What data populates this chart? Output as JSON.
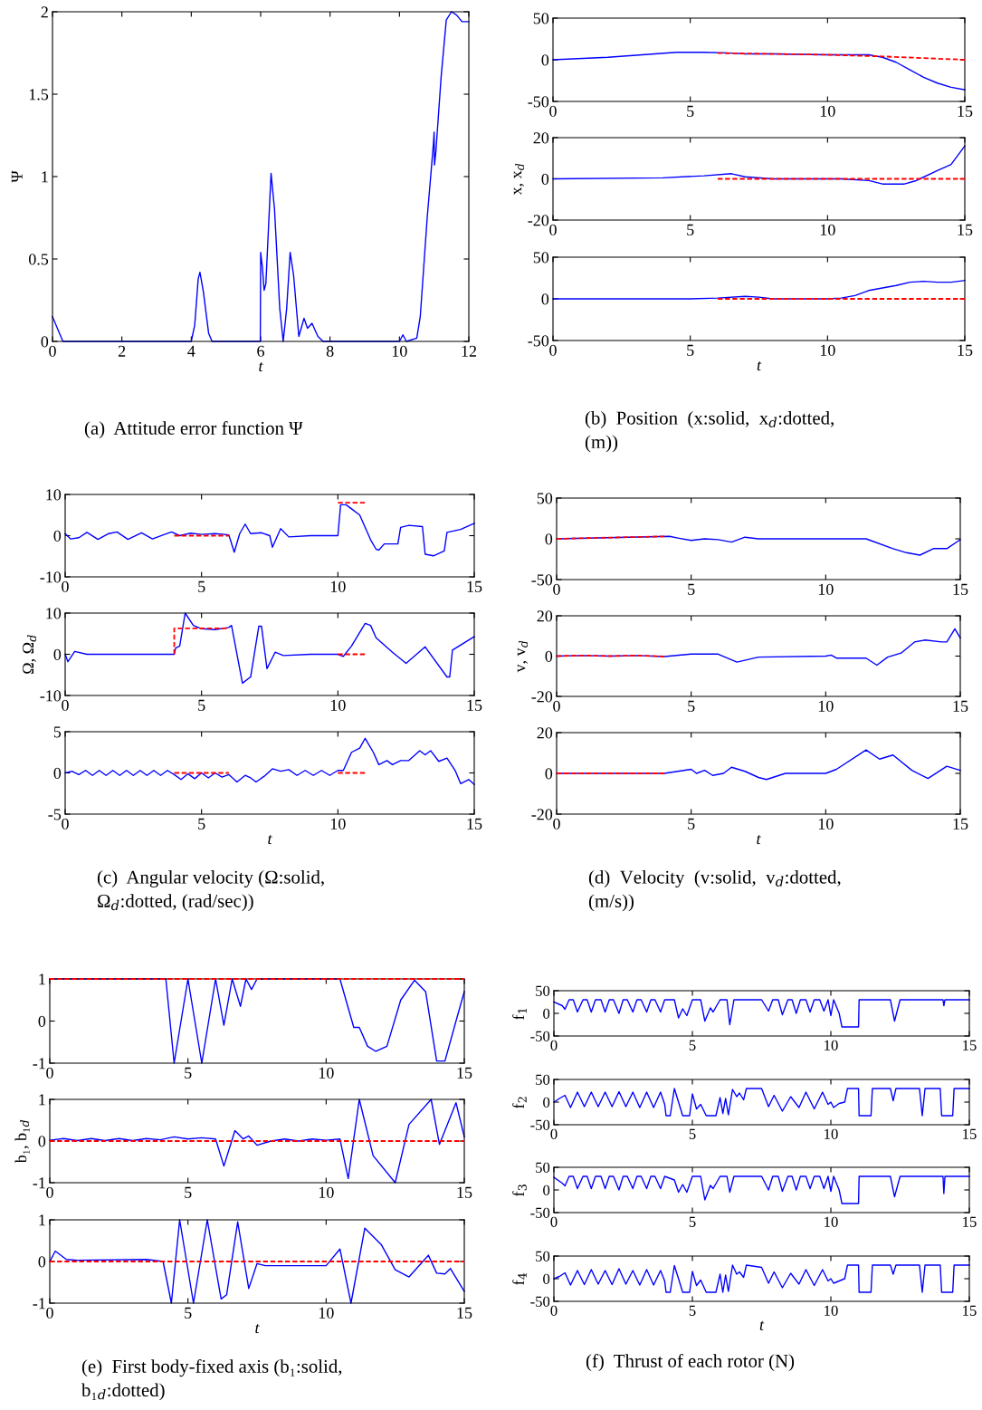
{
  "chart_data": [
    {
      "type": "line",
      "xlim": [
        0,
        12
      ],
      "xticks": [
        0,
        2,
        4,
        6,
        8,
        10,
        12
      ],
      "ylim": [
        0,
        2
      ],
      "yticks": [
        0,
        0.5,
        1,
        1.5,
        2
      ],
      "xlabel": "t",
      "ylabel": "Ψ",
      "annotations": [
        "(a)  Attitude error function Ψ"
      ],
      "series": [
        {
          "color": "#0000ff",
          "x": [
            0,
            0.3,
            4,
            4.1,
            4.2,
            4.25,
            4.35,
            4.5,
            4.6,
            5.99,
            6.0,
            6.05,
            6.1,
            6.15,
            6.3,
            6.4,
            6.55,
            6.65,
            6.75,
            6.85,
            6.95,
            7.1,
            7.25,
            7.35,
            7.48,
            7.65,
            7.8,
            10.0,
            10.1,
            10.2,
            10.5,
            10.6,
            10.8,
            10.98,
            11.0,
            11.01,
            11.05,
            11.2,
            11.35,
            11.5,
            11.65,
            11.8,
            12
          ],
          "values": [
            0.15,
            0,
            0,
            0.1,
            0.38,
            0.42,
            0.3,
            0.05,
            0,
            0,
            0.54,
            0.45,
            0.31,
            0.35,
            1.02,
            0.8,
            0.2,
            0,
            0.2,
            0.54,
            0.4,
            0.03,
            0.14,
            0.08,
            0.11,
            0.03,
            0,
            0,
            0.04,
            0,
            0.02,
            0.15,
            0.75,
            1.2,
            1.27,
            1.07,
            1.15,
            1.6,
            1.95,
            2.0,
            1.98,
            1.94,
            1.94
          ]
        }
      ]
    },
    {
      "type": "line",
      "xlim": [
        0,
        15
      ],
      "xticks": [
        0,
        5,
        10,
        15
      ],
      "ylim": [
        -50,
        50
      ],
      "yticks": [
        -50,
        0,
        50
      ],
      "series": [
        {
          "color": "#0000ff",
          "x": [
            0,
            2,
            4.5,
            5.5,
            6.5,
            7,
            8,
            10,
            11.5,
            12,
            12.5,
            13,
            13.5,
            14,
            14.5,
            15
          ],
          "values": [
            0,
            3,
            9,
            9,
            8,
            7,
            7,
            6,
            6,
            3,
            -3,
            -12,
            -21,
            -28,
            -33,
            -36
          ]
        },
        {
          "color": "#ff0000",
          "line_style": "dashed",
          "x": [
            6,
            10,
            11,
            12,
            15
          ],
          "values": [
            8,
            6,
            5,
            4,
            0
          ]
        }
      ]
    },
    {
      "type": "line",
      "xlim": [
        0,
        15
      ],
      "xticks": [
        0,
        5,
        10,
        15
      ],
      "ylim": [
        -20,
        20
      ],
      "yticks": [
        -20,
        0,
        20
      ],
      "ylabel": "x, x$_{d}$",
      "series": [
        {
          "color": "#0000ff",
          "x": [
            0,
            4,
            5.5,
            6.5,
            7,
            8,
            10.5,
            11.5,
            12,
            12.8,
            13.2,
            14,
            14.5,
            15
          ],
          "values": [
            0,
            0.5,
            1.5,
            2.5,
            1,
            0,
            0,
            -0.8,
            -2.5,
            -2.5,
            -1,
            4,
            7,
            16
          ]
        },
        {
          "color": "#ff0000",
          "line_style": "dashed",
          "x": [
            6,
            15
          ],
          "values": [
            0,
            0
          ]
        }
      ]
    },
    {
      "type": "line",
      "xlim": [
        0,
        15
      ],
      "xticks": [
        0,
        5,
        10,
        15
      ],
      "ylim": [
        -50,
        50
      ],
      "yticks": [
        -50,
        0,
        50
      ],
      "xlabel": "t",
      "annotations": [
        "(b)  Position  (x:solid,  x$_{d}$:dotted,\n(m))"
      ],
      "series": [
        {
          "color": "#0000ff",
          "x": [
            0,
            5,
            6,
            7,
            7.5,
            8,
            10,
            10.5,
            11,
            11.5,
            12.5,
            13,
            13.5,
            14,
            14.5,
            15
          ],
          "values": [
            0,
            0,
            1,
            3,
            2,
            0,
            0,
            1,
            4,
            10,
            16,
            20,
            21,
            20,
            20,
            22
          ]
        },
        {
          "color": "#ff0000",
          "line_style": "dashed",
          "x": [
            6,
            15
          ],
          "values": [
            0,
            0
          ]
        }
      ]
    },
    {
      "type": "line",
      "xlim": [
        0,
        15
      ],
      "xticks": [
        0,
        5,
        10,
        15
      ],
      "ylim": [
        -10,
        10
      ],
      "yticks": [
        -10,
        0,
        10
      ],
      "series": [
        {
          "color": "#0000ff",
          "x": [
            0,
            0.2,
            0.5,
            0.8,
            1.2,
            1.6,
            1.9,
            2.3,
            2.8,
            3.2,
            3.6,
            3.9,
            4.2,
            4.6,
            5,
            5.5,
            6,
            6.2,
            6.4,
            6.6,
            6.8,
            7.2,
            7.5,
            7.6,
            7.9,
            8.2,
            9,
            10,
            10.1,
            10.3,
            10.5,
            10.8,
            11.2,
            11.4,
            11.5,
            11.7,
            12.2,
            12.3,
            12.6,
            13.1,
            13.2,
            13.5,
            13.9,
            14,
            14.5,
            15
          ],
          "values": [
            0.5,
            -0.8,
            -0.5,
            0.8,
            -0.9,
            0.5,
            0.9,
            -0.9,
            0.7,
            -0.8,
            0.2,
            0.9,
            0,
            0.6,
            0.3,
            0.5,
            0.2,
            -4,
            0.5,
            2.8,
            0.5,
            0.7,
            0,
            -2.8,
            1.7,
            -0.3,
            0,
            0,
            7.5,
            7.5,
            6.5,
            5,
            -1,
            -3.3,
            -3.5,
            -2,
            -2,
            2,
            2.5,
            2.2,
            -4.5,
            -4.9,
            -3.7,
            0.8,
            1.5,
            3
          ]
        },
        {
          "color": "#ff0000",
          "line_style": "dashed",
          "x": [
            4,
            6,
            8,
            10,
            11
          ],
          "values": [
            0,
            0,
            null,
            8,
            8
          ]
        }
      ]
    },
    {
      "type": "line",
      "xlim": [
        0,
        15
      ],
      "xticks": [
        0,
        5,
        10,
        15
      ],
      "ylim": [
        -10,
        10
      ],
      "yticks": [
        -10,
        0,
        10
      ],
      "ylabel": "Ω, Ω$_{d}$",
      "series": [
        {
          "color": "#0000ff",
          "x": [
            0,
            0.1,
            0.35,
            0.8,
            4,
            4.05,
            4.2,
            4.4,
            4.7,
            5,
            5.5,
            6,
            6.1,
            6.5,
            6.8,
            7.1,
            7.2,
            7.4,
            7.7,
            8,
            9,
            10,
            10.2,
            10.5,
            11,
            11.2,
            11.4,
            12,
            12.5,
            13.2,
            14,
            14.1,
            14.2,
            15
          ],
          "values": [
            0,
            -1.8,
            0.7,
            0,
            0,
            1.5,
            2,
            10,
            7,
            6.2,
            6,
            6.5,
            7,
            -7,
            -5.5,
            6.8,
            6.8,
            -3.5,
            0.5,
            -0.3,
            0,
            0,
            -0.5,
            2,
            7.5,
            7,
            4,
            0.5,
            -2.2,
            1.8,
            -5.5,
            -5.5,
            1,
            4.3
          ]
        },
        {
          "color": "#ff0000",
          "line_style": "dashed",
          "x": [
            4,
            4,
            6,
            8,
            10,
            11
          ],
          "values": [
            0,
            6.3,
            6.3,
            null,
            0,
            0
          ]
        }
      ]
    },
    {
      "type": "line",
      "xlim": [
        0,
        15
      ],
      "xticks": [
        0,
        5,
        10,
        15
      ],
      "ylim": [
        -5,
        5
      ],
      "yticks": [
        -5,
        0,
        5
      ],
      "xlabel": "t",
      "annotations": [
        "(c)  Angular velocity (Ω:solid,\nΩ$_{d}$:dotted, (rad/sec))"
      ],
      "series": [
        {
          "color": "#0000ff",
          "x": [
            0,
            0.25,
            0.5,
            0.75,
            1,
            1.25,
            1.5,
            1.75,
            2,
            2.25,
            2.5,
            2.75,
            3,
            3.25,
            3.5,
            3.75,
            4,
            4.25,
            4.5,
            4.75,
            5,
            5.25,
            5.5,
            5.75,
            6,
            6.3,
            6.6,
            6.8,
            7,
            7.3,
            7.6,
            7.9,
            8.2,
            8.5,
            8.8,
            9.1,
            9.4,
            9.7,
            10,
            10.2,
            10.5,
            10.8,
            11,
            11.3,
            11.5,
            11.8,
            12,
            12.3,
            12.6,
            13,
            13.2,
            13.4,
            13.7,
            14,
            14.3,
            14.5,
            14.8,
            15
          ],
          "values": [
            0,
            0.2,
            -0.2,
            0.3,
            -0.3,
            0.3,
            -0.3,
            0.3,
            -0.3,
            0.3,
            -0.3,
            0.3,
            -0.3,
            0.3,
            -0.3,
            0.3,
            -0.2,
            -0.8,
            -0.1,
            -0.7,
            0,
            -0.6,
            0,
            -0.5,
            -0.2,
            -1.1,
            -0.3,
            -0.6,
            -1.1,
            -0.4,
            0.5,
            0.2,
            0.4,
            -0.3,
            0.3,
            -0.3,
            0.3,
            -0.3,
            0.3,
            0.3,
            2.5,
            3,
            4.2,
            2.5,
            1,
            1.5,
            1,
            1.5,
            1.5,
            2.7,
            2.2,
            2.7,
            1.4,
            1.8,
            0.3,
            -1.3,
            -0.8,
            -1.4
          ]
        },
        {
          "color": "#ff0000",
          "line_style": "dashed",
          "x": [
            4,
            6,
            8,
            10,
            11
          ],
          "values": [
            0,
            0,
            null,
            0,
            0
          ]
        }
      ]
    },
    {
      "type": "line",
      "xlim": [
        0,
        15
      ],
      "xticks": [
        0,
        5,
        10,
        15
      ],
      "ylim": [
        -50,
        50
      ],
      "yticks": [
        -50,
        0,
        50
      ],
      "series": [
        {
          "color": "#ff0000",
          "line_style": "dashed",
          "x": [
            0,
            4
          ],
          "values": [
            0,
            3
          ]
        },
        {
          "color": "#0000ff",
          "x": [
            0,
            4.2,
            4.5,
            5,
            5.5,
            6,
            6.5,
            7,
            7.5,
            11.5,
            12.5,
            13,
            13.5,
            14,
            14.5,
            15
          ],
          "values": [
            0,
            3,
            1,
            -2,
            0,
            -1,
            -4,
            2,
            0,
            0,
            -12,
            -17,
            -20,
            -12,
            -12,
            -1
          ]
        }
      ]
    },
    {
      "type": "line",
      "xlim": [
        0,
        15
      ],
      "xticks": [
        0,
        5,
        10,
        15
      ],
      "ylim": [
        -20,
        20
      ],
      "yticks": [
        -20,
        0,
        20
      ],
      "ylabel": "v, v$_{d}$",
      "series": [
        {
          "color": "#ff0000",
          "line_style": "dashed",
          "x": [
            0,
            1,
            2,
            3,
            4
          ],
          "values": [
            0,
            0.3,
            0,
            0.3,
            -0.2
          ]
        },
        {
          "color": "#0000ff",
          "x": [
            0,
            1,
            2,
            3,
            4,
            5,
            6,
            6.7,
            7.5,
            10,
            10.2,
            10.4,
            11.5,
            11.9,
            12.3,
            12.8,
            13.3,
            13.7,
            14.3,
            14.5,
            14.8,
            15
          ],
          "values": [
            0,
            0.3,
            0,
            0.3,
            -0.2,
            1,
            1,
            -3,
            -0.5,
            0,
            0.5,
            -1,
            -1,
            -4.5,
            -0.5,
            1.5,
            7,
            8,
            7,
            7,
            13.5,
            9
          ]
        }
      ]
    },
    {
      "type": "line",
      "xlim": [
        0,
        15
      ],
      "xticks": [
        0,
        5,
        10,
        15
      ],
      "ylim": [
        -20,
        20
      ],
      "yticks": [
        -20,
        0,
        20
      ],
      "xlabel": "t",
      "annotations": [
        "(d)  Velocity  (v:solid,  v$_{d}$:dotted,\n(m/s))"
      ],
      "series": [
        {
          "color": "#ff0000",
          "line_style": "dashed",
          "x": [
            0,
            4
          ],
          "values": [
            0,
            0
          ]
        },
        {
          "color": "#0000ff",
          "x": [
            0,
            4,
            4.5,
            5,
            5.2,
            5.5,
            5.8,
            6.2,
            6.5,
            7,
            7.5,
            7.8,
            8.5,
            10,
            10.4,
            11.5,
            12,
            12.5,
            13.2,
            13.8,
            14.5,
            15
          ],
          "values": [
            0,
            0,
            1,
            2,
            0,
            1.5,
            -1,
            0,
            3,
            1,
            -2,
            -3,
            0,
            0,
            2,
            11.5,
            7,
            9,
            1.5,
            -2.5,
            3.5,
            1.5
          ]
        }
      ]
    },
    {
      "type": "line",
      "xlim": [
        0,
        15
      ],
      "xticks": [
        0,
        5,
        10,
        15
      ],
      "ylim": [
        -1,
        1
      ],
      "yticks": [
        -1,
        0,
        1
      ],
      "series": [
        {
          "color": "#ff0000",
          "line_style": "dashed",
          "x": [
            0,
            15
          ],
          "values": [
            1,
            1
          ]
        },
        {
          "color": "#0000ff",
          "x": [
            0,
            4.2,
            4.5,
            5,
            5.5,
            6,
            6.3,
            6.6,
            6.9,
            7.1,
            7.3,
            7.5,
            10.5,
            11,
            11.2,
            11.5,
            11.8,
            12.2,
            12.7,
            13.2,
            13.6,
            14,
            14.3,
            14.7,
            15
          ],
          "values": [
            1,
            1,
            -1,
            1,
            -1,
            1,
            -0.1,
            1,
            0.35,
            1,
            0.75,
            1,
            1,
            -0.15,
            -0.15,
            -0.6,
            -0.72,
            -0.6,
            0.5,
            0.97,
            0.7,
            -0.95,
            -0.95,
            0,
            0.7
          ]
        }
      ]
    },
    {
      "type": "line",
      "xlim": [
        0,
        15
      ],
      "xticks": [
        0,
        5,
        10,
        15
      ],
      "ylim": [
        -1,
        1
      ],
      "yticks": [
        -1,
        0,
        1
      ],
      "ylabel": "b₁, b₁$_{d}$",
      "series": [
        {
          "color": "#ff0000",
          "line_style": "dashed",
          "x": [
            0,
            15
          ],
          "values": [
            0,
            0
          ]
        },
        {
          "color": "#0000ff",
          "x": [
            0,
            0.5,
            1,
            1.5,
            2,
            2.5,
            3,
            3.5,
            4,
            4.5,
            5,
            5.5,
            6,
            6.3,
            6.7,
            7,
            7.2,
            7.5,
            8,
            8.5,
            9,
            9.5,
            10,
            10.5,
            10.8,
            11.2,
            11.7,
            12.5,
            13,
            13.8,
            14.1,
            14.7,
            15
          ],
          "values": [
            0.02,
            0.06,
            0.01,
            0.06,
            0.01,
            0.06,
            0.01,
            0.06,
            0.03,
            0.1,
            0.05,
            0.08,
            0.05,
            -0.6,
            0.25,
            0.05,
            0.12,
            -0.1,
            0,
            0.05,
            0,
            0.05,
            0.02,
            0.05,
            -0.9,
            1,
            -0.35,
            -1,
            0.4,
            1,
            -0.08,
            0.92,
            0.1
          ]
        }
      ]
    },
    {
      "type": "line",
      "xlim": [
        0,
        15
      ],
      "xticks": [
        0,
        5,
        10,
        15
      ],
      "ylim": [
        -1,
        1
      ],
      "yticks": [
        -1,
        0,
        1
      ],
      "xlabel": "t",
      "annotations": [
        "(e)  First body-fixed axis (b₁:solid,\nb₁$_{d}$:dotted)"
      ],
      "series": [
        {
          "color": "#ff0000",
          "line_style": "dashed",
          "x": [
            0,
            15
          ],
          "values": [
            0,
            0
          ]
        },
        {
          "color": "#0000ff",
          "x": [
            0,
            0.2,
            0.6,
            1,
            3.5,
            4.1,
            4.4,
            4.7,
            5.2,
            5.7,
            6.2,
            6.4,
            6.8,
            7.2,
            7.5,
            7.8,
            10,
            10.5,
            10.9,
            11.4,
            12,
            12.5,
            13,
            13.5,
            13.7,
            14,
            14.3,
            14.5,
            15
          ],
          "values": [
            0,
            0.25,
            0.05,
            0.03,
            0.05,
            0,
            -1,
            1,
            -1,
            1,
            -0.9,
            -0.8,
            0.95,
            -0.65,
            -0.05,
            -0.1,
            -0.1,
            0.3,
            -1,
            0.8,
            0.4,
            -0.2,
            -0.37,
            0,
            0.15,
            -0.28,
            -0.3,
            -0.17,
            -0.72
          ]
        }
      ]
    },
    {
      "type": "line",
      "xlim": [
        0,
        15
      ],
      "xticks": [
        0,
        5,
        10,
        15
      ],
      "ylim": [
        -50,
        50
      ],
      "yticks": [
        -50,
        0,
        50
      ],
      "ylabel": "f$_{1}$",
      "series": [
        {
          "color": "#0000ff",
          "x": [
            0,
            0.3,
            0.4,
            0.55,
            0.7,
            0.85,
            1.05,
            1.2,
            1.35,
            1.5,
            1.7,
            1.85,
            2,
            2.15,
            2.35,
            2.5,
            2.65,
            2.85,
            3,
            3.15,
            3.35,
            3.5,
            3.65,
            3.85,
            4,
            4.35,
            4.5,
            4.65,
            4.8,
            5,
            5.3,
            5.45,
            5.65,
            5.75,
            6,
            6.25,
            6.35,
            6.5,
            7.5,
            7.75,
            7.9,
            8.1,
            8.25,
            8.45,
            8.6,
            8.75,
            8.9,
            9.1,
            9.25,
            9.4,
            9.6,
            9.75,
            9.9,
            10,
            10.1,
            10.3,
            10.4,
            11,
            11.02,
            12.15,
            12.3,
            12.5,
            14.05,
            14.08,
            14.12,
            15
          ],
          "values": [
            25,
            17,
            9,
            30,
            30,
            3,
            30,
            30,
            3,
            30,
            30,
            3,
            30,
            30,
            0,
            30,
            30,
            3,
            30,
            30,
            3,
            30,
            30,
            3,
            30,
            30,
            -10,
            10,
            -5,
            30,
            30,
            -17,
            12,
            3,
            30,
            30,
            -25,
            30,
            30,
            5,
            30,
            30,
            -3,
            30,
            30,
            0,
            30,
            30,
            3,
            30,
            30,
            5,
            30,
            -5,
            30,
            0,
            -30,
            -30,
            30,
            30,
            -17,
            30,
            30,
            17,
            30,
            30
          ]
        }
      ]
    },
    {
      "type": "line",
      "xlim": [
        0,
        15
      ],
      "xticks": [
        0,
        5,
        10,
        15
      ],
      "ylim": [
        -50,
        50
      ],
      "yticks": [
        -50,
        0,
        50
      ],
      "ylabel": "f$_{2}$",
      "series": [
        {
          "color": "#0000ff",
          "x": [
            0,
            0.2,
            0.4,
            0.6,
            0.85,
            1.1,
            1.35,
            1.6,
            1.85,
            2.1,
            2.35,
            2.6,
            2.85,
            3.1,
            3.35,
            3.6,
            3.85,
            4,
            4.05,
            4.2,
            4.35,
            4.5,
            4.65,
            4.9,
            5,
            5.15,
            5.3,
            5.5,
            5.85,
            6,
            6.1,
            6.2,
            6.3,
            6.45,
            6.6,
            6.7,
            6.85,
            6.95,
            7.5,
            7.75,
            7.95,
            8.25,
            8.55,
            8.85,
            9.1,
            9.4,
            9.7,
            9.9,
            10,
            10.1,
            10.3,
            10.5,
            10.6,
            11,
            11.02,
            11.45,
            11.5,
            12.15,
            12.25,
            12.35,
            13.2,
            13.3,
            13.4,
            13.95,
            14,
            14.4,
            14.45,
            15
          ],
          "values": [
            0,
            8,
            15,
            -12,
            22,
            -10,
            22,
            -10,
            22,
            -10,
            23,
            -10,
            22,
            -12,
            22,
            -12,
            22,
            -5,
            -30,
            -30,
            30,
            0,
            -30,
            -30,
            18,
            -15,
            -5,
            -30,
            -30,
            10,
            -25,
            8,
            -28,
            28,
            12,
            20,
            5,
            30,
            30,
            -10,
            15,
            -20,
            12,
            -12,
            22,
            -15,
            22,
            -5,
            0,
            -12,
            -3,
            0,
            30,
            30,
            -30,
            -30,
            30,
            30,
            3,
            30,
            30,
            -30,
            30,
            30,
            -30,
            -30,
            30,
            30
          ]
        }
      ]
    },
    {
      "type": "line",
      "xlim": [
        0,
        15
      ],
      "xticks": [
        0,
        5,
        10,
        15
      ],
      "ylim": [
        -50,
        50
      ],
      "yticks": [
        -50,
        0,
        50
      ],
      "ylabel": "f$_{3}$",
      "series": [
        {
          "color": "#0000ff",
          "x": [
            0,
            0.3,
            0.4,
            0.55,
            0.7,
            0.85,
            1.05,
            1.2,
            1.35,
            1.5,
            1.7,
            1.85,
            2,
            2.15,
            2.35,
            2.5,
            2.65,
            2.85,
            3,
            3.15,
            3.35,
            3.5,
            3.65,
            3.85,
            4,
            4.35,
            4.5,
            4.65,
            4.8,
            5,
            5.3,
            5.45,
            5.65,
            5.75,
            6,
            6.25,
            6.35,
            6.5,
            7.5,
            7.75,
            7.9,
            8.1,
            8.25,
            8.45,
            8.6,
            8.75,
            8.9,
            9.1,
            9.25,
            9.4,
            9.6,
            9.75,
            9.9,
            10,
            10.1,
            10.3,
            10.4,
            11,
            11.02,
            12.15,
            12.3,
            12.5,
            14.05,
            14.08,
            14.12,
            15
          ],
          "values": [
            28,
            15,
            9,
            30,
            30,
            3,
            30,
            30,
            3,
            30,
            30,
            3,
            30,
            30,
            0,
            30,
            30,
            3,
            30,
            30,
            3,
            30,
            30,
            3,
            30,
            22,
            -5,
            12,
            -5,
            30,
            30,
            -22,
            10,
            3,
            30,
            30,
            -5,
            30,
            30,
            0,
            30,
            30,
            -3,
            30,
            30,
            0,
            30,
            30,
            3,
            30,
            30,
            3,
            30,
            -3,
            30,
            0,
            -30,
            -30,
            30,
            30,
            -15,
            30,
            30,
            -8,
            30,
            30
          ]
        }
      ]
    },
    {
      "type": "line",
      "xlim": [
        0,
        15
      ],
      "xticks": [
        0,
        5,
        10,
        15
      ],
      "ylim": [
        -50,
        50
      ],
      "yticks": [
        -50,
        0,
        50
      ],
      "ylabel": "f$_{4}$",
      "xlabel": "t",
      "annotations": [
        "(f)  Thrust of each rotor (N)"
      ],
      "series": [
        {
          "color": "#0000ff",
          "x": [
            0,
            0.2,
            0.4,
            0.6,
            0.85,
            1.1,
            1.35,
            1.6,
            1.85,
            2.1,
            2.35,
            2.6,
            2.85,
            3.1,
            3.35,
            3.6,
            3.85,
            4,
            4.05,
            4.2,
            4.35,
            4.5,
            4.65,
            4.9,
            5,
            5.15,
            5.3,
            5.5,
            5.85,
            6,
            6.1,
            6.2,
            6.3,
            6.45,
            6.6,
            6.7,
            6.85,
            6.95,
            7.5,
            7.75,
            7.95,
            8.25,
            8.55,
            8.85,
            9.1,
            9.4,
            9.7,
            9.9,
            10,
            10.1,
            10.3,
            10.5,
            10.6,
            11,
            11.02,
            11.45,
            11.5,
            12.15,
            12.25,
            12.35,
            13.2,
            13.3,
            13.4,
            13.95,
            14,
            14.4,
            14.45,
            15
          ],
          "values": [
            0,
            5,
            13,
            -14,
            18,
            -13,
            20,
            -12,
            18,
            -13,
            22,
            -12,
            18,
            -14,
            20,
            -14,
            18,
            -5,
            -30,
            -30,
            29,
            0,
            -30,
            -30,
            16,
            -15,
            -3,
            -30,
            -30,
            10,
            -30,
            8,
            -28,
            30,
            10,
            15,
            3,
            30,
            25,
            -10,
            15,
            -20,
            12,
            -12,
            20,
            -15,
            20,
            -5,
            0,
            -10,
            -5,
            0,
            30,
            30,
            -30,
            -30,
            30,
            30,
            10,
            30,
            30,
            -30,
            30,
            30,
            -30,
            -30,
            30,
            30
          ]
        }
      ]
    }
  ]
}
